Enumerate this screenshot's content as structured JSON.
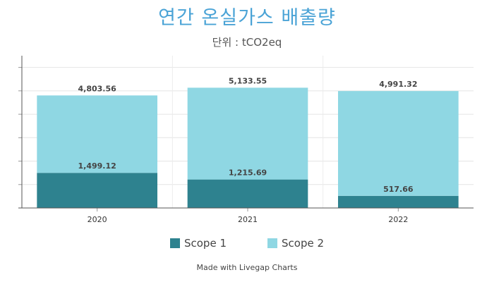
{
  "title": "연간 온실가스 배출량",
  "subtitle": "단위 : tCO2eq",
  "footer": "Made with Livegap Charts",
  "colors": {
    "scope1": "#2e828f",
    "scope2": "#8fd7e3",
    "title": "#4aa3d6"
  },
  "chart_data": {
    "type": "bar",
    "stacked": true,
    "categories": [
      "2020",
      "2021",
      "2022"
    ],
    "series": [
      {
        "name": "Scope 1",
        "values": [
          1499.12,
          1215.69,
          517.66
        ],
        "labels": [
          "1,499.12",
          "1,215.69",
          "517.66"
        ]
      },
      {
        "name": "Scope 2",
        "values": [
          3304.44,
          3917.86,
          4473.66
        ],
        "totals": [
          "4,803.56",
          "5,133.55",
          "4,991.32"
        ]
      }
    ],
    "ylim": [
      0,
      6500
    ],
    "grid": true,
    "legend_position": "bottom"
  }
}
